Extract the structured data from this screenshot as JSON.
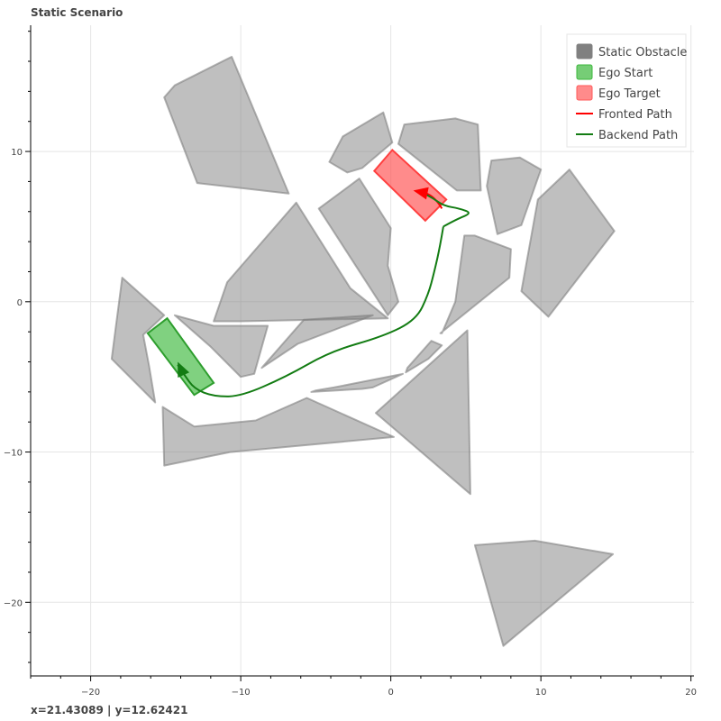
{
  "chart_data": {
    "type": "scatter",
    "title": "Static Scenario",
    "xlabel": "",
    "ylabel": "",
    "xlim": [
      -24,
      20.2
    ],
    "ylim": [
      -24.9,
      18.4
    ],
    "xticks": [
      -20,
      -10,
      0,
      10,
      20
    ],
    "yticks": [
      -20,
      -10,
      0,
      10
    ],
    "xtick_labels": [
      "−20",
      "−10",
      "0",
      "10",
      "20"
    ],
    "ytick_labels": [
      "−20",
      "−10",
      "0",
      "10"
    ],
    "grid": true,
    "legend_position": "top-right",
    "legend": [
      {
        "label": "Static Obstacle",
        "kind": "patch",
        "color": "#808080"
      },
      {
        "label": "Ego Start",
        "kind": "patch",
        "color": "#3cb83c"
      },
      {
        "label": "Ego Target",
        "kind": "patch",
        "color": "#ff5a5a"
      },
      {
        "label": "Fronted Path",
        "kind": "line",
        "color": "#ff0000"
      },
      {
        "label": "Backend Path",
        "kind": "line",
        "color": "#137c13"
      }
    ],
    "obstacles": [
      [
        [
          -15.1,
          13.6
        ],
        [
          -14.4,
          14.4
        ],
        [
          -10.6,
          16.3
        ],
        [
          -6.8,
          7.2
        ],
        [
          -12.9,
          7.9
        ]
      ],
      [
        [
          -4.1,
          9.3
        ],
        [
          -3.2,
          11.0
        ],
        [
          -0.5,
          12.6
        ],
        [
          0.1,
          10.6
        ],
        [
          -1.9,
          8.9
        ],
        [
          -2.9,
          8.6
        ]
      ],
      [
        [
          0.5,
          10.5
        ],
        [
          0.9,
          11.8
        ],
        [
          4.3,
          12.2
        ],
        [
          5.8,
          11.8
        ],
        [
          6.0,
          7.4
        ],
        [
          4.4,
          7.4
        ]
      ],
      [
        [
          6.4,
          7.7
        ],
        [
          6.7,
          9.4
        ],
        [
          8.6,
          9.6
        ],
        [
          10.0,
          8.8
        ],
        [
          8.7,
          5.1
        ],
        [
          7.1,
          4.5
        ]
      ],
      [
        [
          9.8,
          6.8
        ],
        [
          11.9,
          8.8
        ],
        [
          14.9,
          4.7
        ],
        [
          10.5,
          -1.0
        ],
        [
          8.7,
          0.7
        ]
      ],
      [
        [
          -4.8,
          6.2
        ],
        [
          -2.1,
          8.2
        ],
        [
          0.0,
          4.9
        ],
        [
          -0.2,
          2.4
        ],
        [
          0.5,
          0.0
        ],
        [
          -0.2,
          -0.9
        ]
      ],
      [
        [
          -10.9,
          1.3
        ],
        [
          -6.3,
          6.6
        ],
        [
          -2.7,
          0.9
        ],
        [
          -0.2,
          -1.1
        ],
        [
          -10.0,
          -1.3
        ],
        [
          -11.8,
          -1.3
        ]
      ],
      [
        [
          -17.9,
          1.6
        ],
        [
          -18.6,
          -3.8
        ],
        [
          -15.7,
          -6.7
        ],
        [
          -16.1,
          -4.3
        ],
        [
          -16.5,
          -2.2
        ],
        [
          -15.1,
          -0.9
        ]
      ],
      [
        [
          -14.4,
          -0.9
        ],
        [
          -12.0,
          -3.0
        ],
        [
          -10.0,
          -5.0
        ],
        [
          -9.1,
          -4.8
        ],
        [
          -8.2,
          -1.6
        ],
        [
          -11.8,
          -1.6
        ]
      ],
      [
        [
          -8.6,
          -4.4
        ],
        [
          -5.8,
          -1.2
        ],
        [
          -1.2,
          -0.9
        ],
        [
          -6.2,
          -2.8
        ]
      ],
      [
        [
          -5.0,
          -5.9
        ],
        [
          -3.8,
          -5.7
        ],
        [
          0.8,
          -4.8
        ],
        [
          -1.2,
          -5.7
        ],
        [
          -1.9,
          -5.8
        ],
        [
          -5.3,
          -6.0
        ]
      ],
      [
        [
          -1.0,
          -7.4
        ],
        [
          5.1,
          -1.9
        ],
        [
          5.3,
          -12.8
        ]
      ],
      [
        [
          3.4,
          -2.1
        ],
        [
          4.3,
          0.0
        ],
        [
          4.9,
          4.4
        ],
        [
          5.6,
          4.4
        ],
        [
          8.0,
          3.5
        ],
        [
          7.9,
          1.6
        ],
        [
          3.3,
          -2.1
        ]
      ],
      [
        [
          1.0,
          -4.7
        ],
        [
          2.5,
          -3.8
        ],
        [
          3.4,
          -2.9
        ],
        [
          2.7,
          -2.6
        ],
        [
          1.1,
          -4.4
        ]
      ],
      [
        [
          -15.2,
          -7.0
        ],
        [
          -13.1,
          -8.3
        ],
        [
          -9.0,
          -7.9
        ],
        [
          -5.6,
          -6.4
        ],
        [
          0.2,
          -9.0
        ],
        [
          -10.7,
          -10.0
        ],
        [
          -15.1,
          -10.9
        ]
      ],
      [
        [
          5.6,
          -16.2
        ],
        [
          9.6,
          -15.9
        ],
        [
          14.8,
          -16.8
        ],
        [
          7.5,
          -22.9
        ]
      ]
    ],
    "ego_start": [
      [
        -16.2,
        -2.1
      ],
      [
        -14.9,
        -1.1
      ],
      [
        -11.8,
        -5.4
      ],
      [
        -13.1,
        -6.2
      ]
    ],
    "ego_target": [
      [
        -1.1,
        8.7
      ],
      [
        0.1,
        10.1
      ],
      [
        3.7,
        6.8
      ],
      [
        2.3,
        5.4
      ]
    ],
    "fronted_path": [
      [
        3.4,
        6.2
      ],
      [
        3.0,
        6.9
      ],
      [
        2.0,
        7.4
      ]
    ],
    "fronted_arrow": {
      "tip": [
        1.5,
        7.4
      ],
      "dir": [
        -1.0,
        0.2
      ]
    },
    "backend_path": [
      [
        3.5,
        5.0
      ],
      [
        3.3,
        3.8
      ],
      [
        2.9,
        2.0
      ],
      [
        2.5,
        0.5
      ],
      [
        1.7,
        -1.2
      ],
      [
        -0.5,
        -2.3
      ],
      [
        -4.0,
        -3.3
      ],
      [
        -7.0,
        -5.0
      ],
      [
        -10.0,
        -6.3
      ],
      [
        -11.8,
        -6.3
      ],
      [
        -13.1,
        -5.8
      ],
      [
        -13.8,
        -4.8
      ],
      [
        -14.2,
        -4.2
      ]
    ],
    "backend_branch": [
      [
        3.5,
        5.0
      ],
      [
        4.4,
        5.5
      ],
      [
        5.4,
        5.9
      ],
      [
        4.6,
        6.2
      ],
      [
        3.5,
        6.4
      ],
      [
        2.8,
        6.9
      ],
      [
        2.0,
        7.3
      ]
    ],
    "backend_arrow_start": {
      "tip": [
        -14.2,
        -4.0
      ],
      "dir": [
        -0.4,
        0.9
      ]
    },
    "backend_arrow_target": {
      "tip": [
        1.5,
        7.4
      ],
      "dir": [
        -1.0,
        0.2
      ]
    }
  },
  "coords": {
    "x_label": "x=21.43089",
    "separator": "|",
    "y_label": "y=12.62421"
  }
}
